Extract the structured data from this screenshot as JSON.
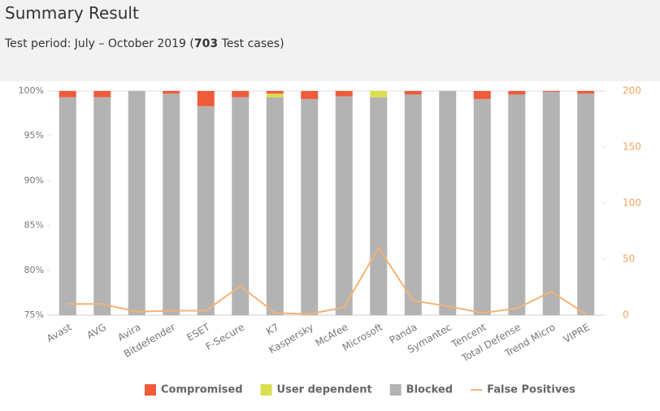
{
  "header": {
    "title": "Summary Result",
    "subtitle": {
      "prefix": "Test period: July – October 2019 (",
      "count": "703",
      "suffix": " Test cases)"
    }
  },
  "chart_data": {
    "type": "bar",
    "stacked": true,
    "categories": [
      "Avast",
      "AVG",
      "Avira",
      "Bitdefender",
      "ESET",
      "F-Secure",
      "K7",
      "Kaspersky",
      "McAfee",
      "Microsoft",
      "Panda",
      "Symantec",
      "Tencent",
      "Total Defense",
      "Trend Micro",
      "VIPRE"
    ],
    "series": [
      {
        "name": "Blocked",
        "color": "#b3b3b3",
        "values": [
          99.3,
          99.3,
          100,
          99.7,
          98.3,
          99.3,
          99.3,
          99.1,
          99.4,
          99.3,
          99.6,
          100,
          99.1,
          99.6,
          99.9,
          99.7
        ]
      },
      {
        "name": "User dependent",
        "color": "#d9df4f",
        "values": [
          0,
          0,
          0,
          0,
          0,
          0,
          0.4,
          0,
          0,
          0.7,
          0,
          0,
          0,
          0,
          0,
          0
        ]
      },
      {
        "name": "Compromised",
        "color": "#f05b3a",
        "values": [
          0.7,
          0.7,
          0,
          0.3,
          1.7,
          0.7,
          0.3,
          0.9,
          0.6,
          0,
          0.4,
          0,
          0.9,
          0.4,
          0.1,
          0.3
        ]
      },
      {
        "name": "False Positives",
        "type": "line",
        "axis": "y2",
        "color": "#f4b277",
        "values": [
          10,
          10,
          3,
          4,
          4,
          26,
          2,
          1,
          7,
          60,
          13,
          8,
          2,
          6,
          21,
          1
        ]
      }
    ],
    "legend_order": [
      2,
      1,
      0,
      3
    ],
    "ylim": [
      75,
      100
    ],
    "yticks": [
      {
        "value": 75,
        "label": "75%"
      },
      {
        "value": 80,
        "label": "80%"
      },
      {
        "value": 85,
        "label": "85%"
      },
      {
        "value": 90,
        "label": "90%"
      },
      {
        "value": 95,
        "label": "95%"
      },
      {
        "value": 100,
        "label": "100%"
      }
    ],
    "y2lim": [
      0,
      200
    ],
    "y2ticks": [
      0,
      50,
      100,
      150,
      200
    ],
    "y2_color": "#f4a460",
    "grid": false,
    "legend": "bottom"
  }
}
